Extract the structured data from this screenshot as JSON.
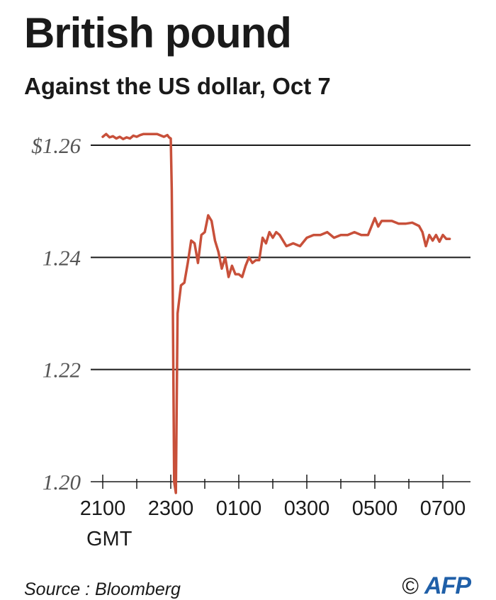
{
  "header": {
    "title": "British pound",
    "subtitle": "Against the US dollar, Oct 7"
  },
  "footer": {
    "source": "Source : Bloomberg",
    "copyright_symbol": "©",
    "logo_text": "AFP"
  },
  "colors": {
    "line": "#c8503a",
    "grid": "#1a1a1a",
    "logo": "#1f5fa8"
  },
  "chart_data": {
    "type": "line",
    "title": "British pound",
    "subtitle": "Against the US dollar, Oct 7",
    "xlabel": "GMT",
    "ylabel": "",
    "ylim": [
      1.2,
      1.26
    ],
    "yticks": [
      1.2,
      1.22,
      1.24,
      1.26
    ],
    "ytick_labels": [
      "1.20",
      "1.22",
      "1.24",
      "$1.26"
    ],
    "xlim": [
      21.0,
      31.4
    ],
    "xticks": [
      21,
      22,
      23,
      24,
      25,
      26,
      27,
      28,
      29,
      30,
      31
    ],
    "xtick_labels": [
      "2100",
      "",
      "2300",
      "",
      "0100",
      "",
      "0300",
      "",
      "0500",
      "",
      "0700"
    ],
    "grid": "horizontal",
    "series": [
      {
        "name": "",
        "x": [
          21.0,
          21.1,
          21.2,
          21.3,
          21.4,
          21.5,
          21.6,
          21.7,
          21.8,
          21.9,
          22.0,
          22.1,
          22.2,
          22.4,
          22.6,
          22.8,
          22.9,
          22.95,
          23.0,
          23.03,
          23.06,
          23.1,
          23.15,
          23.2,
          23.3,
          23.4,
          23.5,
          23.6,
          23.7,
          23.8,
          23.9,
          24.0,
          24.1,
          24.2,
          24.3,
          24.4,
          24.5,
          24.6,
          24.7,
          24.8,
          24.9,
          25.0,
          25.1,
          25.2,
          25.3,
          25.4,
          25.5,
          25.6,
          25.7,
          25.8,
          25.9,
          26.0,
          26.1,
          26.2,
          26.4,
          26.6,
          26.8,
          27.0,
          27.2,
          27.4,
          27.6,
          27.8,
          28.0,
          28.2,
          28.4,
          28.6,
          28.8,
          29.0,
          29.1,
          29.2,
          29.3,
          29.5,
          29.7,
          29.9,
          30.1,
          30.3,
          30.4,
          30.5,
          30.6,
          30.7,
          30.8,
          30.9,
          31.0,
          31.1,
          31.2
        ],
        "y": [
          1.2615,
          1.262,
          1.2614,
          1.2616,
          1.2612,
          1.2615,
          1.2611,
          1.2614,
          1.2612,
          1.2617,
          1.2615,
          1.2618,
          1.262,
          1.262,
          1.262,
          1.2615,
          1.2618,
          1.2614,
          1.2612,
          1.252,
          1.232,
          1.2,
          1.198,
          1.23,
          1.235,
          1.2355,
          1.239,
          1.243,
          1.2425,
          1.239,
          1.244,
          1.2445,
          1.2475,
          1.2465,
          1.243,
          1.241,
          1.238,
          1.24,
          1.2365,
          1.2385,
          1.237,
          1.237,
          1.2365,
          1.2385,
          1.24,
          1.239,
          1.2395,
          1.2395,
          1.2435,
          1.2425,
          1.2445,
          1.2435,
          1.2445,
          1.244,
          1.242,
          1.2425,
          1.242,
          1.2435,
          1.244,
          1.244,
          1.2445,
          1.2435,
          1.244,
          1.244,
          1.2445,
          1.244,
          1.244,
          1.247,
          1.2455,
          1.2465,
          1.2465,
          1.2465,
          1.246,
          1.246,
          1.2462,
          1.2456,
          1.2445,
          1.242,
          1.244,
          1.243,
          1.244,
          1.2428,
          1.244,
          1.2433,
          1.2433
        ]
      }
    ]
  }
}
